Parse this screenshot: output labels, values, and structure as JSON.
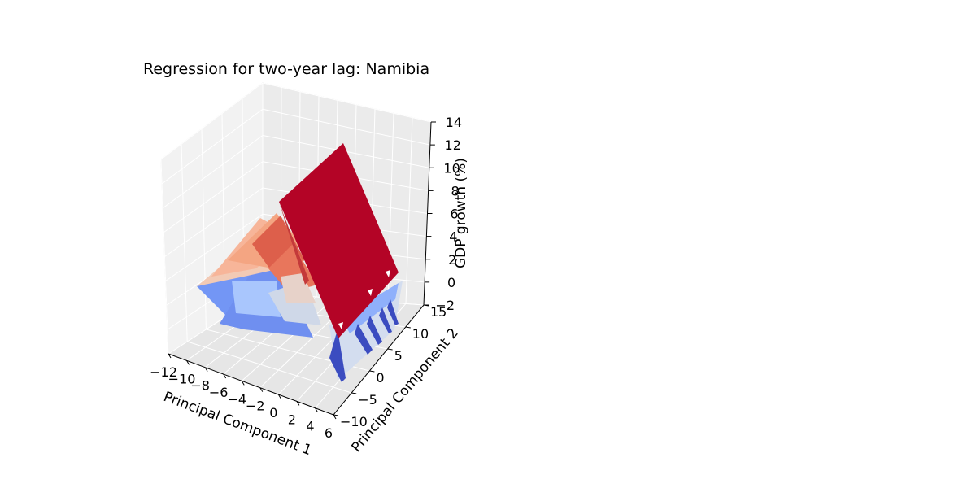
{
  "chart_data": {
    "type": "surface3d",
    "title": "Regression for two-year lag: Namibia",
    "xlabel": "Principal Component 1",
    "ylabel": "Principal Component 2",
    "zlabel": "GDP growth (%)",
    "x_ticks": [
      "−12",
      "−10",
      "−8",
      "−6",
      "−4",
      "−2",
      "0",
      "2",
      "4",
      "6"
    ],
    "y_ticks": [
      "−10",
      "−5",
      "0",
      "5",
      "10",
      "15"
    ],
    "z_ticks": [
      "−2",
      "0",
      "2",
      "4",
      "6",
      "8",
      "10",
      "12",
      "14"
    ],
    "xlim": [
      -12,
      6
    ],
    "ylim": [
      -10,
      15
    ],
    "zlim": [
      -2,
      14
    ],
    "colormap": "coolwarm",
    "colors": {
      "high": "#b40426",
      "upper": "#dd5f4b",
      "mid_warm": "#f4b89b",
      "neutral": "#dcdddd",
      "mid_cool": "#a9c6fd",
      "low": "#7396f5",
      "lowest": "#3b4cc0"
    },
    "grid": true,
    "legend": "none"
  }
}
